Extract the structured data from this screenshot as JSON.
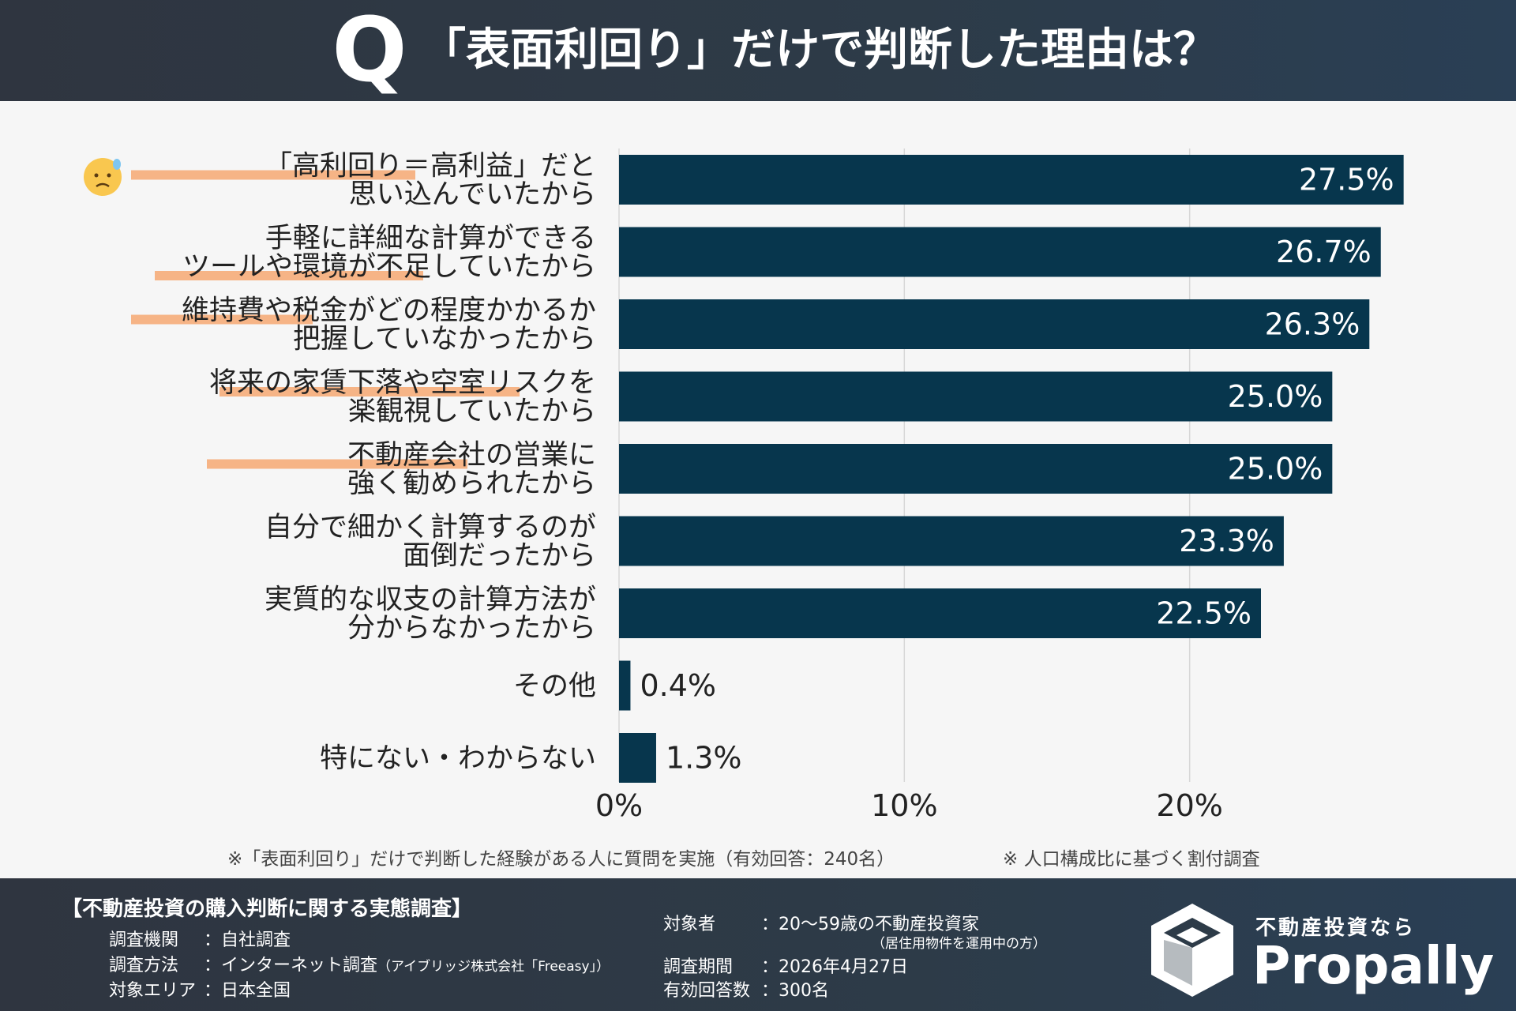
{
  "header": {
    "q_mark": "Q",
    "title": "「表面利回り」だけで判断した理由は？"
  },
  "chart_data": {
    "type": "bar",
    "orientation": "horizontal",
    "categories": [
      {
        "lines": [
          "「高利回り＝高利益」だと",
          "思い込んでいたから"
        ],
        "emoji": "😓"
      },
      {
        "lines": [
          "手軽に詳細な計算ができる",
          "ツールや環境が不足していたから"
        ]
      },
      {
        "lines": [
          "維持費や税金がどの程度かかるか",
          "把握していなかったから"
        ]
      },
      {
        "lines": [
          "将来の家賃下落や空室リスクを",
          "楽観視していたから"
        ]
      },
      {
        "lines": [
          "不動産会社の営業に",
          "強く勧められたから"
        ]
      },
      {
        "lines": [
          "自分で細かく計算するのが",
          "面倒だったから"
        ]
      },
      {
        "lines": [
          "実質的な収支の計算方法が",
          "分からなかったから"
        ]
      },
      {
        "lines": [
          "その他"
        ]
      },
      {
        "lines": [
          "特にない・わからない"
        ]
      }
    ],
    "values": [
      27.5,
      26.7,
      26.3,
      25.0,
      25.0,
      23.3,
      22.5,
      0.4,
      1.3
    ],
    "value_labels": [
      "27.5%",
      "26.7%",
      "26.3%",
      "25.0%",
      "25.0%",
      "23.3%",
      "22.5%",
      "0.4%",
      "1.3%"
    ],
    "xlim": [
      0,
      30
    ],
    "x_ticks": [
      0,
      10,
      20
    ],
    "x_tick_labels": [
      "0%",
      "10%",
      "20%"
    ],
    "grid": true,
    "bar_color": "#07364d",
    "highlight_color": "#f6a872"
  },
  "notes": {
    "left": "※「表面利回り」だけで判断した経験がある人に質問を実施（有効回答：240名）",
    "right": "※ 人口構成比に基づく割付調査"
  },
  "footer": {
    "title": "【不動産投資の購入判断に関する実態調査】",
    "left_rows": [
      {
        "key": "調査機関",
        "value": "：自社調査",
        "small": ""
      },
      {
        "key": "調査方法",
        "value": "：インターネット調査",
        "small": "（アイブリッジ株式会社「Freeasy」）"
      },
      {
        "key": "対象エリア",
        "value": "：日本全国",
        "small": ""
      }
    ],
    "right_rows": [
      {
        "key": "対象者",
        "value": "：20～59歳の不動産投資家",
        "small": "（居住用物件を運用中の方）"
      },
      {
        "key": "調査期間",
        "value": "：2026年4月27日",
        "small": ""
      },
      {
        "key": "有効回答数",
        "value": "：300名",
        "small": ""
      }
    ],
    "logo_sub": "不動産投資なら",
    "logo_name": "Propally"
  }
}
